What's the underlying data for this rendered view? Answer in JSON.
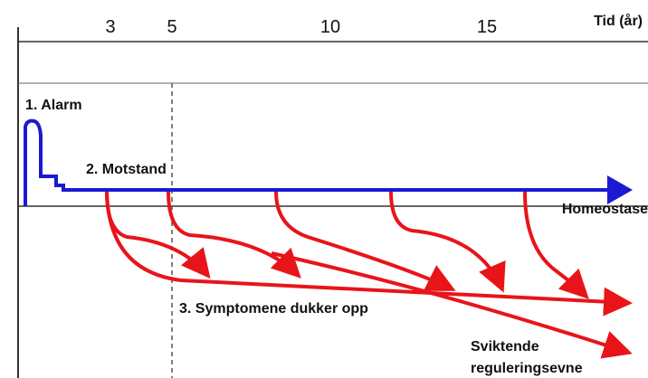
{
  "axis": {
    "ticks": [
      "3",
      "5",
      "10",
      "15"
    ],
    "label": "Tid (år)"
  },
  "labels": {
    "alarm": "1. Alarm",
    "motstand": "2. Motstand",
    "homeostase": "Homeostase",
    "symptomer": "3. Symptomene dukker opp",
    "sviktende": [
      "Sviktende",
      "reguleringsevne"
    ]
  }
}
